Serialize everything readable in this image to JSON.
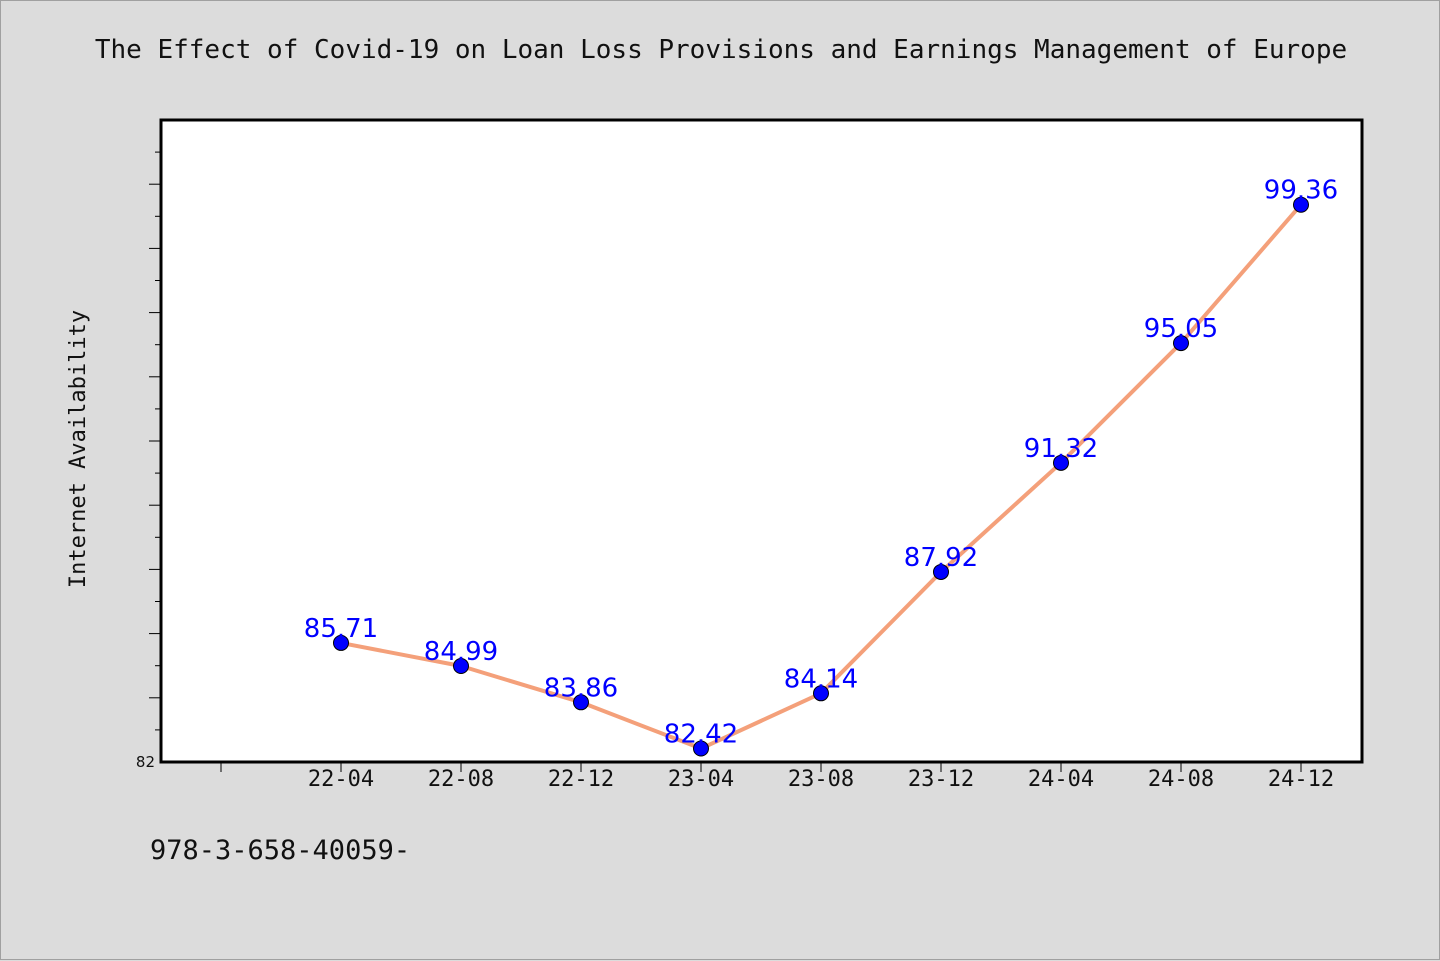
{
  "title": "The Effect of Covid-19 on Loan Loss Provisions and Earnings Management of Europe",
  "footnote": "978-3-658-40059-",
  "chart_data": {
    "type": "line",
    "title": "The Effect of Covid-19 on Loan Loss Provisions and Earnings Management of Europe",
    "xlabel": "",
    "ylabel": "Internet Availability",
    "x": [
      "22-04",
      "22-08",
      "22-12",
      "23-04",
      "23-08",
      "23-12",
      "24-04",
      "24-08",
      "24-12"
    ],
    "series": [
      {
        "values": [
          85.71,
          84.99,
          83.86,
          82.42,
          84.14,
          87.92,
          91.32,
          95.05,
          99.36
        ]
      }
    ],
    "data_labels": [
      "85.71",
      "84.99",
      "83.86",
      "82.42",
      "84.14",
      "87.92",
      "91.32",
      "95.05",
      "99.36"
    ],
    "ylim": [
      82,
      102
    ],
    "ytick_labels": [
      "82"
    ],
    "grid": false,
    "legend": "none",
    "line_color": "#f4a07a",
    "marker_color": "#0000ff",
    "label_color": "#0000ff",
    "background": "#dcdcdc",
    "plot_background": "#ffffff"
  }
}
